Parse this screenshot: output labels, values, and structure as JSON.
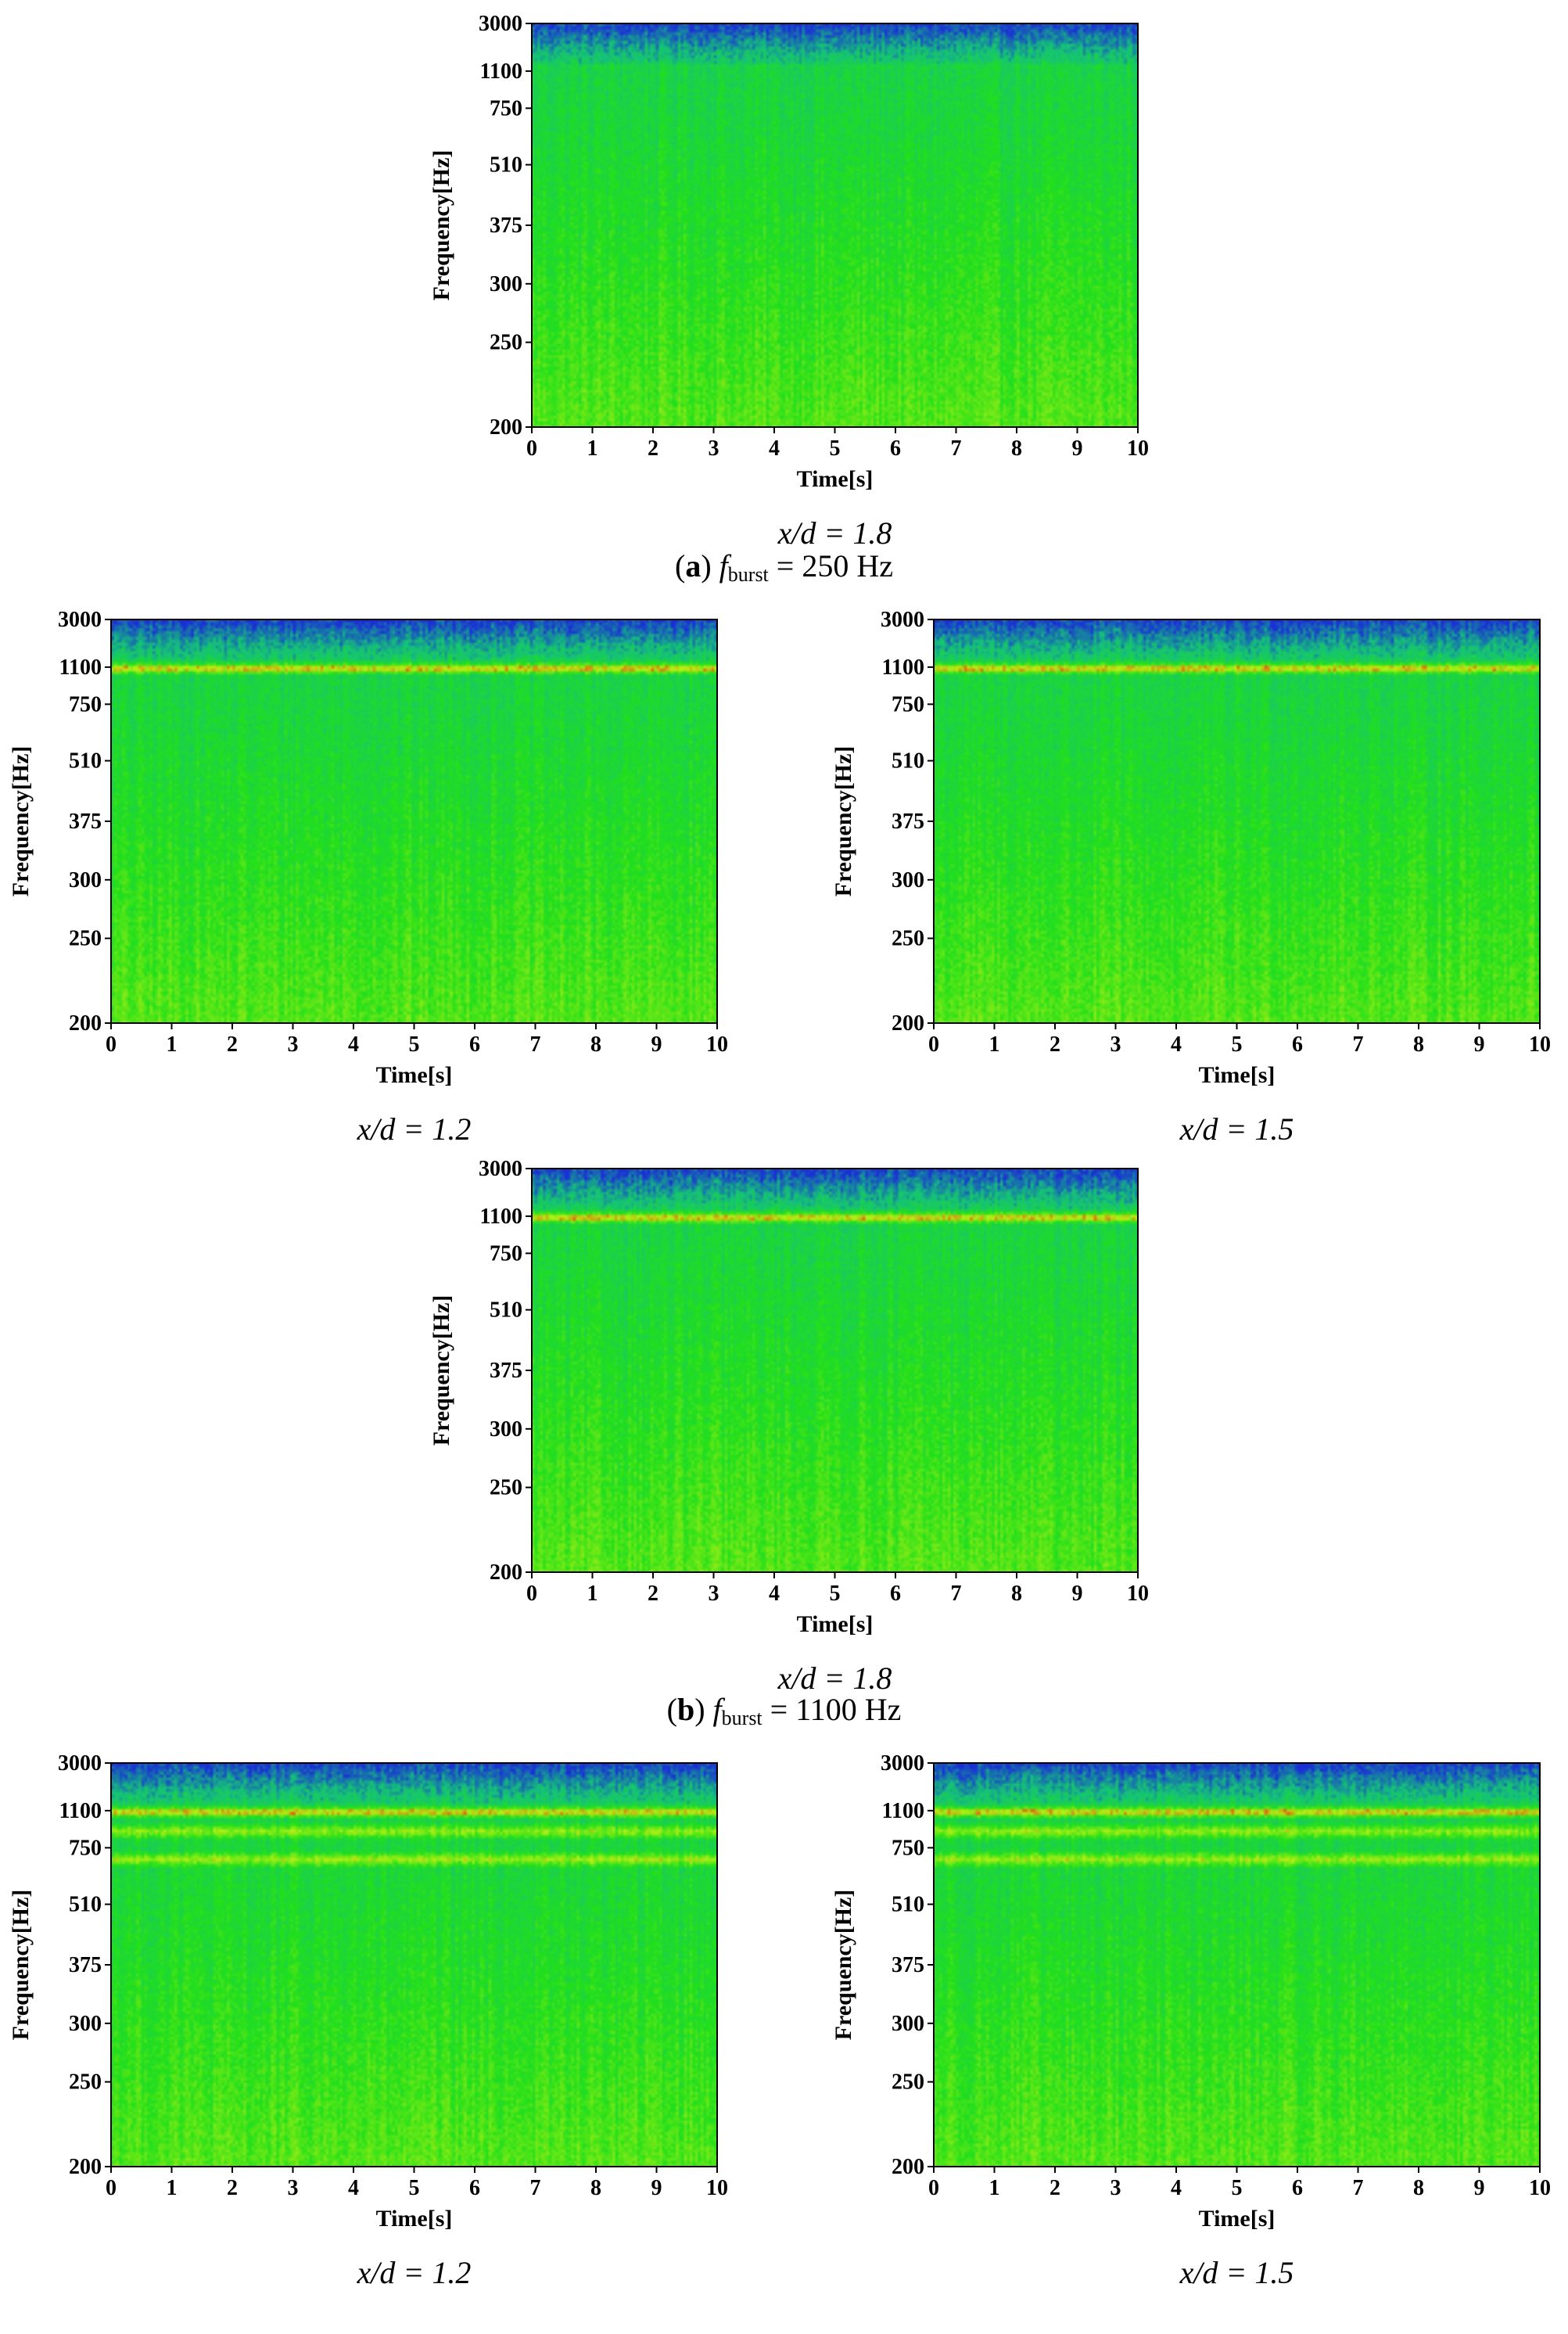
{
  "captions": {
    "a": {
      "letter": "a",
      "f_symbol": "f",
      "f_sub": "burst",
      "rest": " = 250 Hz"
    },
    "b": {
      "letter": "b",
      "f_symbol": "f",
      "f_sub": "burst",
      "rest": " = 1100 Hz"
    }
  },
  "chart_data": [
    {
      "type": "heatmap",
      "panel": "a-1.8",
      "caption": "x/d = 1.8",
      "xlabel": "Time[s]",
      "ylabel": "Frequency[Hz]",
      "x_ticks": [
        "0",
        "1",
        "2",
        "3",
        "4",
        "5",
        "6",
        "7",
        "8",
        "9",
        "10"
      ],
      "xlim": [
        0,
        10
      ],
      "y_ticks": [
        "3000",
        "1100",
        "750",
        "510",
        "375",
        "300",
        "250",
        "200"
      ],
      "ylim": [
        200,
        3000
      ],
      "y_scale": "nonlinear",
      "colormap": [
        "#1a2ed6",
        "#15c27a",
        "#22e01a",
        "#b8f014",
        "#ee2a10"
      ],
      "dominant_bands": []
    },
    {
      "type": "heatmap",
      "panel": "b-1.2",
      "caption": "x/d = 1.2",
      "xlabel": "Time[s]",
      "ylabel": "Frequency[Hz]",
      "x_ticks": [
        "0",
        "1",
        "2",
        "3",
        "4",
        "5",
        "6",
        "7",
        "8",
        "9",
        "10"
      ],
      "xlim": [
        0,
        10
      ],
      "y_ticks": [
        "3000",
        "1100",
        "750",
        "510",
        "375",
        "300",
        "250",
        "200"
      ],
      "ylim": [
        200,
        3000
      ],
      "y_scale": "nonlinear",
      "colormap": [
        "#1a2ed6",
        "#15c27a",
        "#22e01a",
        "#b8f014",
        "#ee2a10"
      ],
      "dominant_bands": [
        1100
      ]
    },
    {
      "type": "heatmap",
      "panel": "b-1.5",
      "caption": "x/d = 1.5",
      "xlabel": "Time[s]",
      "ylabel": "Frequency[Hz]",
      "x_ticks": [
        "0",
        "1",
        "2",
        "3",
        "4",
        "5",
        "6",
        "7",
        "8",
        "9",
        "10"
      ],
      "xlim": [
        0,
        10
      ],
      "y_ticks": [
        "3000",
        "1100",
        "750",
        "510",
        "375",
        "300",
        "250",
        "200"
      ],
      "ylim": [
        200,
        3000
      ],
      "y_scale": "nonlinear",
      "colormap": [
        "#1a2ed6",
        "#15c27a",
        "#22e01a",
        "#b8f014",
        "#ee2a10"
      ],
      "dominant_bands": [
        1100
      ]
    },
    {
      "type": "heatmap",
      "panel": "b-1.8",
      "caption": "x/d = 1.8",
      "xlabel": "Time[s]",
      "ylabel": "Frequency[Hz]",
      "x_ticks": [
        "0",
        "1",
        "2",
        "3",
        "4",
        "5",
        "6",
        "7",
        "8",
        "9",
        "10"
      ],
      "xlim": [
        0,
        10
      ],
      "y_ticks": [
        "3000",
        "1100",
        "750",
        "510",
        "375",
        "300",
        "250",
        "200"
      ],
      "ylim": [
        200,
        3000
      ],
      "y_scale": "nonlinear",
      "colormap": [
        "#1a2ed6",
        "#15c27a",
        "#22e01a",
        "#b8f014",
        "#ee2a10"
      ],
      "dominant_bands": [
        1100
      ]
    },
    {
      "type": "heatmap",
      "panel": "c-1.2",
      "caption": "x/d = 1.2",
      "xlabel": "Time[s]",
      "ylabel": "Frequency[Hz]",
      "x_ticks": [
        "0",
        "1",
        "2",
        "3",
        "4",
        "5",
        "6",
        "7",
        "8",
        "9",
        "10"
      ],
      "xlim": [
        0,
        10
      ],
      "y_ticks": [
        "3000",
        "1100",
        "750",
        "510",
        "375",
        "300",
        "250",
        "200"
      ],
      "ylim": [
        200,
        3000
      ],
      "y_scale": "nonlinear",
      "colormap": [
        "#1a2ed6",
        "#15c27a",
        "#22e01a",
        "#b8f014",
        "#ee2a10"
      ],
      "dominant_bands": [
        1100,
        900,
        700
      ]
    },
    {
      "type": "heatmap",
      "panel": "c-1.5",
      "caption": "x/d = 1.5",
      "xlabel": "Time[s]",
      "ylabel": "Frequency[Hz]",
      "x_ticks": [
        "0",
        "1",
        "2",
        "3",
        "4",
        "5",
        "6",
        "7",
        "8",
        "9",
        "10"
      ],
      "xlim": [
        0,
        10
      ],
      "y_ticks": [
        "3000",
        "1100",
        "750",
        "510",
        "375",
        "300",
        "250",
        "200"
      ],
      "ylim": [
        200,
        3000
      ],
      "y_scale": "nonlinear",
      "colormap": [
        "#1a2ed6",
        "#15c27a",
        "#22e01a",
        "#b8f014",
        "#ee2a10"
      ],
      "dominant_bands": [
        1100,
        900,
        700
      ]
    }
  ]
}
